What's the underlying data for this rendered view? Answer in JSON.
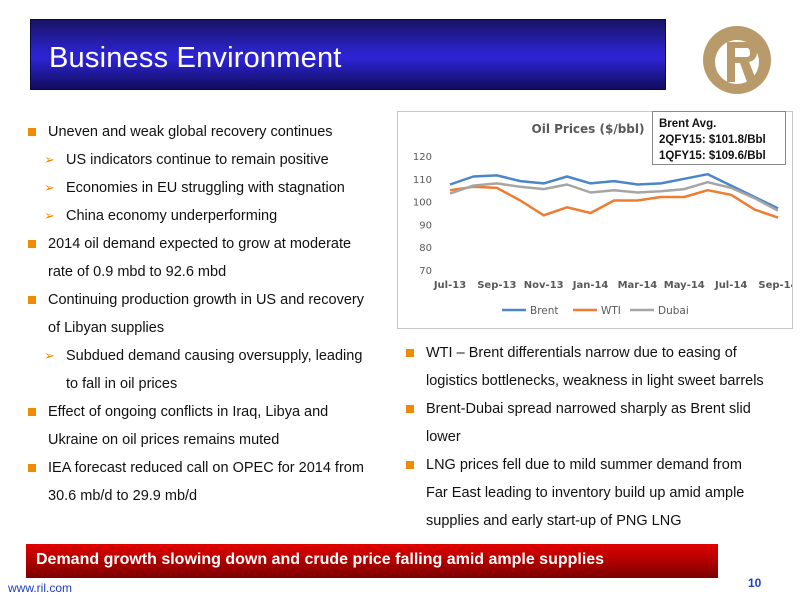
{
  "slide": {
    "title": "Business Environment",
    "left_bullets": [
      {
        "level": 1,
        "text": "Uneven and weak global recovery continues"
      },
      {
        "level": 2,
        "text": "US indicators continue to remain positive"
      },
      {
        "level": 2,
        "text": "Economies in EU struggling with stagnation"
      },
      {
        "level": 2,
        "text": "China economy underperforming"
      },
      {
        "level": 1,
        "text": "2014 oil demand expected to grow at moderate"
      },
      {
        "level": 0,
        "text": "rate of 0.9 mbd to 92.6 mbd"
      },
      {
        "level": 1,
        "text": "Continuing production growth in US and recovery"
      },
      {
        "level": 0,
        "text": "of Libyan supplies"
      },
      {
        "level": 2,
        "text": "Subdued demand causing oversupply, leading"
      },
      {
        "level": 3,
        "text": "to fall in oil prices"
      },
      {
        "level": 1,
        "text": "Effect of ongoing conflicts in Iraq, Libya and"
      },
      {
        "level": 0,
        "text": "Ukraine on oil prices remains muted"
      },
      {
        "level": 1,
        "text": "IEA forecast reduced call on OPEC for 2014 from"
      },
      {
        "level": 0,
        "text": "30.6 mb/d to 29.9 mb/d"
      }
    ],
    "right_bullets": [
      {
        "level": 1,
        "text": "WTI – Brent differentials narrow due to easing of"
      },
      {
        "level": 0,
        "text": "logistics bottlenecks, weakness in light sweet barrels"
      },
      {
        "level": 1,
        "text": "Brent-Dubai spread narrowed sharply as Brent slid"
      },
      {
        "level": 0,
        "text": "lower"
      },
      {
        "level": 1,
        "text": "LNG prices fell due to mild summer demand from"
      },
      {
        "level": 0,
        "text": "Far East leading to inventory build up amid ample"
      },
      {
        "level": 0,
        "text": "supplies and early start-up of PNG LNG"
      }
    ],
    "callout": {
      "line1": "Brent Avg.",
      "line2": "2QFY15: $101.8/Bbl",
      "line3": "1QFY15: $109.6/Bbl"
    },
    "bottom_banner": "Demand growth slowing down and crude price falling amid ample supplies",
    "footer_url": "www.ril.com",
    "page_number": "10",
    "colors": {
      "bullet": "#f08a00",
      "brent": "#4a86c8",
      "wti": "#ed7d31",
      "dubai": "#a5a5a5",
      "title_bar": "#2a22c8",
      "banner": "#c00000"
    }
  },
  "chart_data": {
    "type": "line",
    "title": "Oil Prices ($/bbl)",
    "x": [
      "Jul-13",
      "Aug-13",
      "Sep-13",
      "Oct-13",
      "Nov-13",
      "Dec-13",
      "Jan-14",
      "Feb-14",
      "Mar-14",
      "Apr-14",
      "May-14",
      "Jun-14",
      "Jul-14",
      "Aug-14",
      "Sep-14"
    ],
    "x_tick_labels": [
      "Jul-13",
      "Sep-13",
      "Nov-13",
      "Jan-14",
      "Mar-14",
      "May-14",
      "Jul-14",
      "Sep-14"
    ],
    "ylim": [
      70,
      120
    ],
    "y_ticks": [
      70,
      80,
      90,
      100,
      110,
      120
    ],
    "grid": false,
    "legend": "bottom",
    "series": [
      {
        "name": "Brent",
        "color": "#4a86c8",
        "values": [
          107.5,
          111,
          111.5,
          109,
          108,
          111,
          108,
          109,
          107.5,
          108,
          110,
          112,
          107,
          102,
          97
        ]
      },
      {
        "name": "WTI",
        "color": "#ed7d31",
        "values": [
          105,
          106.5,
          106,
          100.5,
          94,
          97.5,
          95,
          100.5,
          100.5,
          102,
          102,
          105,
          103,
          96.5,
          93
        ]
      },
      {
        "name": "Dubai",
        "color": "#a5a5a5",
        "values": [
          103.5,
          107,
          108,
          106.5,
          105.5,
          107.5,
          104,
          105,
          104,
          104.5,
          105.5,
          108.5,
          106,
          101.5,
          96
        ]
      }
    ]
  }
}
